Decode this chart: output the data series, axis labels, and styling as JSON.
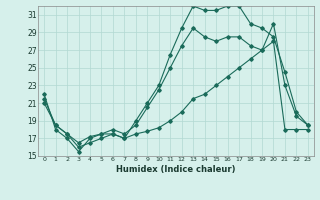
{
  "xlabel": "Humidex (Indice chaleur)",
  "ylabel": "",
  "bg_color": "#d6f0eb",
  "grid_color": "#b2d8d2",
  "line_color": "#1a6b5a",
  "xlim": [
    -0.5,
    23.5
  ],
  "ylim": [
    15,
    32
  ],
  "yticks": [
    15,
    17,
    19,
    21,
    23,
    25,
    27,
    29,
    31
  ],
  "xticks": [
    0,
    1,
    2,
    3,
    4,
    5,
    6,
    7,
    8,
    9,
    10,
    11,
    12,
    13,
    14,
    15,
    16,
    17,
    18,
    19,
    20,
    21,
    22,
    23
  ],
  "line1_x": [
    0,
    1,
    2,
    3,
    4,
    5,
    6,
    7,
    8,
    9,
    10,
    11,
    12,
    13,
    14,
    15,
    16,
    17,
    18,
    19,
    20,
    21,
    22,
    23
  ],
  "line1_y": [
    22,
    18,
    17,
    15.5,
    17,
    17.5,
    17.5,
    17,
    19,
    21,
    23,
    26.5,
    29.5,
    32,
    31.5,
    31.5,
    32,
    32,
    30,
    29.5,
    28.5,
    24.5,
    20,
    18.5
  ],
  "line2_x": [
    0,
    1,
    2,
    3,
    4,
    5,
    6,
    7,
    8,
    9,
    10,
    11,
    12,
    13,
    14,
    15,
    16,
    17,
    18,
    19,
    20,
    21,
    22,
    23
  ],
  "line2_y": [
    21.5,
    18.5,
    17.5,
    16.5,
    17.2,
    17.5,
    18,
    17.5,
    18.5,
    20.5,
    22.5,
    25,
    27.5,
    29.5,
    28.5,
    28,
    28.5,
    28.5,
    27.5,
    27,
    30,
    23,
    19.5,
    18.5
  ],
  "line3_x": [
    0,
    1,
    2,
    3,
    4,
    5,
    6,
    7,
    8,
    9,
    10,
    11,
    12,
    13,
    14,
    15,
    16,
    17,
    18,
    19,
    20,
    21,
    22,
    23
  ],
  "line3_y": [
    21,
    18.5,
    17.5,
    16,
    16.5,
    17,
    17.5,
    17,
    17.5,
    17.8,
    18.2,
    19,
    20,
    21.5,
    22,
    23,
    24,
    25,
    26,
    27,
    28,
    18,
    18,
    18
  ]
}
